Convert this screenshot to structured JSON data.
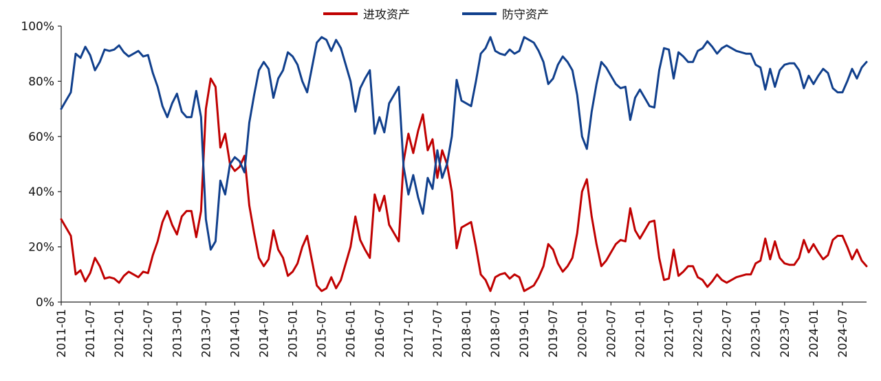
{
  "chart_data": {
    "type": "line",
    "title": "",
    "xlabel": "",
    "ylabel": "",
    "ylim": [
      0,
      100
    ],
    "y_ticks": [
      "0%",
      "20%",
      "40%",
      "60%",
      "80%",
      "100%"
    ],
    "x_ticks": [
      "2011-01",
      "2011-07",
      "2012-01",
      "2012-07",
      "2013-01",
      "2013-07",
      "2014-01",
      "2014-07",
      "2015-01",
      "2015-07",
      "2016-01",
      "2016-07",
      "2017-01",
      "2017-07",
      "2018-01",
      "2018-07",
      "2019-01",
      "2019-07",
      "2020-01",
      "2020-07",
      "2021-01",
      "2021-07",
      "2022-01",
      "2022-07",
      "2023-01",
      "2023-07",
      "2024-01",
      "2024-07"
    ],
    "x_range": [
      "2011-01",
      "2024-12"
    ],
    "legend_position": "top-center",
    "grid": false,
    "x": [
      "2011-01",
      "2011-02",
      "2011-03",
      "2011-04",
      "2011-05",
      "2011-06",
      "2011-07",
      "2011-08",
      "2011-09",
      "2011-10",
      "2011-11",
      "2011-12",
      "2012-01",
      "2012-02",
      "2012-03",
      "2012-04",
      "2012-05",
      "2012-06",
      "2012-07",
      "2012-08",
      "2012-09",
      "2012-10",
      "2012-11",
      "2012-12",
      "2013-01",
      "2013-02",
      "2013-03",
      "2013-04",
      "2013-05",
      "2013-06",
      "2013-07",
      "2013-08",
      "2013-09",
      "2013-10",
      "2013-11",
      "2013-12",
      "2014-01",
      "2014-02",
      "2014-03",
      "2014-04",
      "2014-05",
      "2014-06",
      "2014-07",
      "2014-08",
      "2014-09",
      "2014-10",
      "2014-11",
      "2014-12",
      "2015-01",
      "2015-02",
      "2015-03",
      "2015-04",
      "2015-05",
      "2015-06",
      "2015-07",
      "2015-08",
      "2015-09",
      "2015-10",
      "2015-11",
      "2015-12",
      "2016-01",
      "2016-02",
      "2016-03",
      "2016-04",
      "2016-05",
      "2016-06",
      "2016-07",
      "2016-08",
      "2016-09",
      "2016-10",
      "2016-11",
      "2016-12",
      "2017-01",
      "2017-02",
      "2017-03",
      "2017-04",
      "2017-05",
      "2017-06",
      "2017-07",
      "2017-08",
      "2017-09",
      "2017-10",
      "2017-11",
      "2017-12",
      "2018-01",
      "2018-02",
      "2018-03",
      "2018-04",
      "2018-05",
      "2018-06",
      "2018-07",
      "2018-08",
      "2018-09",
      "2018-10",
      "2018-11",
      "2018-12",
      "2019-01",
      "2019-02",
      "2019-03",
      "2019-04",
      "2019-05",
      "2019-06",
      "2019-07",
      "2019-08",
      "2019-09",
      "2019-10",
      "2019-11",
      "2019-12",
      "2020-01",
      "2020-02",
      "2020-03",
      "2020-04",
      "2020-05",
      "2020-06",
      "2020-07",
      "2020-08",
      "2020-09",
      "2020-10",
      "2020-11",
      "2020-12",
      "2021-01",
      "2021-02",
      "2021-03",
      "2021-04",
      "2021-05",
      "2021-06",
      "2021-07",
      "2021-08",
      "2021-09",
      "2021-10",
      "2021-11",
      "2021-12",
      "2022-01",
      "2022-02",
      "2022-03",
      "2022-04",
      "2022-05",
      "2022-06",
      "2022-07",
      "2022-08",
      "2022-09",
      "2022-10",
      "2022-11",
      "2022-12",
      "2023-01",
      "2023-02",
      "2023-03",
      "2023-04",
      "2023-05",
      "2023-06",
      "2023-07",
      "2023-08",
      "2023-09",
      "2023-10",
      "2023-11",
      "2023-12",
      "2024-01",
      "2024-02",
      "2024-03",
      "2024-04",
      "2024-05",
      "2024-06",
      "2024-07",
      "2024-08",
      "2024-09",
      "2024-10",
      "2024-11",
      "2024-12"
    ],
    "series": [
      {
        "name": "进攻资产",
        "color": "#c00000",
        "values": [
          30,
          27,
          24,
          10,
          11.5,
          7.5,
          10.5,
          16,
          13,
          8.5,
          9,
          8.5,
          7,
          9.5,
          11,
          10,
          9,
          11,
          10.5,
          17,
          22,
          29,
          33,
          28,
          24.5,
          31,
          33,
          33,
          23.5,
          33,
          70,
          81,
          78,
          56,
          61,
          50,
          47.5,
          49,
          53,
          35,
          25,
          16,
          13,
          15.5,
          26,
          19,
          16,
          9.5,
          11,
          14,
          20,
          24,
          15,
          6,
          4,
          5,
          9,
          5,
          8,
          14,
          20,
          31,
          22.5,
          19,
          16,
          39,
          33,
          38.5,
          28,
          25,
          22,
          51,
          61,
          54,
          62,
          68,
          55,
          59,
          45,
          55,
          50,
          40,
          19.5,
          27,
          28,
          29,
          20,
          10,
          8,
          4,
          9,
          10,
          10.5,
          8.5,
          10,
          9,
          4,
          5,
          6,
          9,
          13,
          21,
          19,
          14,
          11,
          13,
          16,
          25,
          40,
          44.5,
          31,
          21,
          13,
          15,
          18,
          21,
          22.5,
          22,
          34,
          26,
          23,
          26,
          29,
          29.5,
          16,
          8,
          8.5,
          19,
          9.5,
          11,
          13,
          13,
          9,
          8,
          5.5,
          7.5,
          10,
          8,
          7,
          8,
          9,
          9.5,
          10,
          10,
          14,
          15,
          23,
          15.5,
          22,
          16,
          14,
          13.5,
          13.5,
          16,
          22.5,
          18,
          21,
          18,
          15.5,
          17,
          22.5,
          24,
          24,
          20,
          15.5,
          19,
          15,
          13
        ]
      },
      {
        "name": "防守资产",
        "color": "#103f8c",
        "values": [
          70,
          73,
          76,
          90,
          88.5,
          92.5,
          89.5,
          84,
          87,
          91.5,
          91,
          91.5,
          93,
          90.5,
          89,
          90,
          91,
          89,
          89.5,
          83,
          78,
          71,
          67,
          72,
          75.5,
          69,
          67,
          67,
          76.5,
          67,
          30,
          19,
          22,
          44,
          39,
          50,
          52.5,
          51,
          47,
          65,
          75,
          84,
          87,
          84.5,
          74,
          81,
          84,
          90.5,
          89,
          86,
          80,
          76,
          85,
          94,
          96,
          95,
          91,
          95,
          92,
          86,
          80,
          69,
          77.5,
          81,
          84,
          61,
          67,
          61.5,
          72,
          75,
          78,
          49,
          39,
          46,
          38,
          32,
          45,
          41,
          55,
          45,
          50,
          60,
          80.5,
          73,
          72,
          71,
          80,
          90,
          92,
          96,
          91,
          90,
          89.5,
          91.5,
          90,
          91,
          96,
          95,
          94,
          91,
          87,
          79,
          81,
          86,
          89,
          87,
          84,
          75,
          60,
          55.5,
          69,
          79,
          87,
          85,
          82,
          79,
          77.5,
          78,
          66,
          74,
          77,
          74,
          71,
          70.5,
          84,
          92,
          91.5,
          81,
          90.5,
          89,
          87,
          87,
          91,
          92,
          94.5,
          92.5,
          90,
          92,
          93,
          92,
          91,
          90.5,
          90,
          90,
          86,
          85,
          77,
          84.5,
          78,
          84,
          86,
          86.5,
          86.5,
          84,
          77.5,
          82,
          79,
          82,
          84.5,
          83,
          77.5,
          76,
          76,
          80,
          84.5,
          81,
          85,
          87
        ]
      }
    ]
  }
}
